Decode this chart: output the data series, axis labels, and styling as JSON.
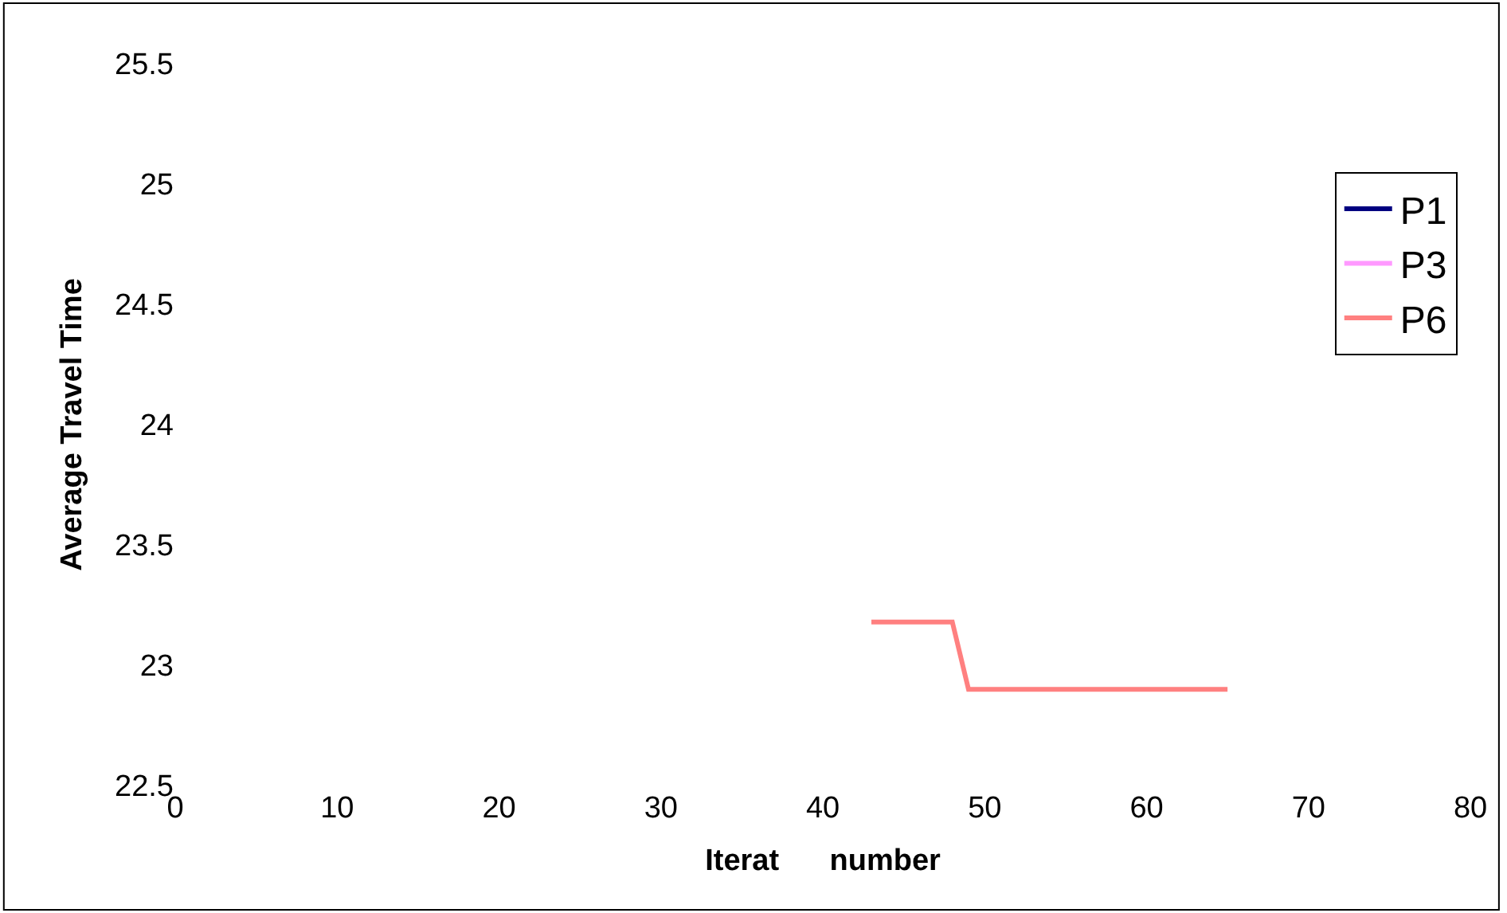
{
  "chart_data": {
    "type": "line",
    "xlabel": "Iterat      number",
    "ylabel": "Average Travel Time",
    "x": [
      43,
      44,
      45,
      46,
      47,
      48,
      49,
      50,
      51,
      52,
      53,
      54,
      55,
      56,
      57,
      58,
      59,
      60,
      61,
      62,
      63,
      64,
      65
    ],
    "series": [
      {
        "name": "P1",
        "color": "#000080",
        "values": [
          null,
          null,
          null,
          null,
          null,
          null,
          null,
          null,
          null,
          null,
          null,
          null,
          null,
          null,
          null,
          null,
          null,
          null,
          null,
          null,
          null,
          null,
          null
        ]
      },
      {
        "name": "P3",
        "color": "#ff99ff",
        "values": [
          null,
          null,
          null,
          null,
          null,
          null,
          null,
          null,
          null,
          null,
          null,
          null,
          null,
          null,
          null,
          null,
          null,
          null,
          null,
          null,
          null,
          null,
          null
        ]
      },
      {
        "name": "P6",
        "color": "#ff8080",
        "values": [
          23.18,
          23.18,
          23.18,
          23.18,
          23.18,
          23.18,
          22.9,
          22.9,
          22.9,
          22.9,
          22.9,
          22.9,
          22.9,
          22.9,
          22.9,
          22.9,
          22.9,
          22.9,
          22.9,
          22.9,
          22.9,
          22.9,
          22.9
        ]
      }
    ],
    "xlim": [
      0,
      80
    ],
    "xticks": [
      0,
      10,
      20,
      30,
      40,
      50,
      60,
      70,
      80
    ],
    "ylim": [
      22.5,
      25.5
    ],
    "yticks": [
      22.5,
      23,
      23.5,
      24,
      24.5,
      25,
      25.5
    ],
    "legend": "top right",
    "marker": "none",
    "line_style": "solid"
  }
}
